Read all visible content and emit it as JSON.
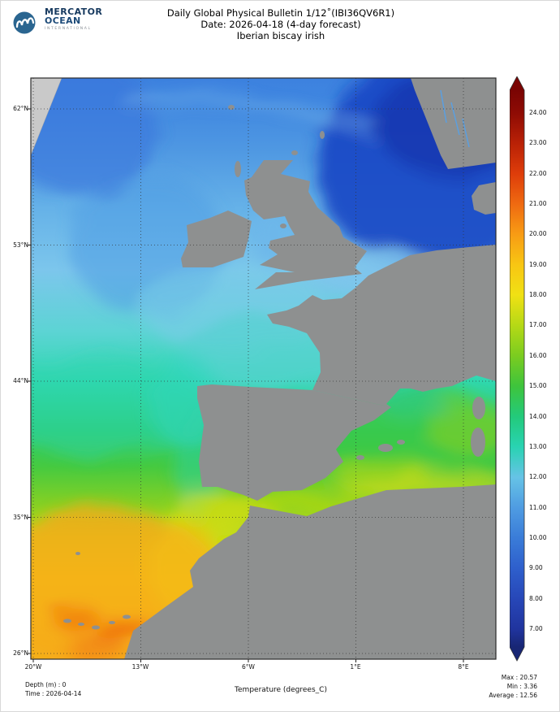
{
  "logo": {
    "line1": "MERCATOR",
    "line2": "OCEAN",
    "line3": "INTERNATIONAL",
    "circle_color": "#2a6590"
  },
  "title": {
    "line1": "Daily Global Physical Bulletin 1/12˚(IBI36QV6R1)",
    "line2": "Date: 2026-04-18 (4-day forecast)",
    "line3": "Iberian biscay irish"
  },
  "footer": {
    "depth": "Depth (m) : 0",
    "time": "Time : 2026-04-14",
    "variable": "Temperature (degrees_C)",
    "max": "Max : 20.57",
    "min": "Min : 3.36",
    "average": "Average : 12.56"
  },
  "chart_data": {
    "type": "heatmap",
    "title": "Daily Global Physical Bulletin 1/12˚(IBI36QV6R1)",
    "date": "2026-04-18",
    "forecast": "4-day forecast",
    "region": "Iberian biscay irish",
    "variable": "Temperature (degrees_C)",
    "depth_m": 0,
    "time": "2026-04-14",
    "x_ticks": [
      "20°W",
      "13°W",
      "6°W",
      "1°E",
      "8°E"
    ],
    "y_ticks": [
      "62°N",
      "53°N",
      "44°N",
      "35°N",
      "26°N"
    ],
    "lon_range": [
      -20,
      10
    ],
    "lat_range": [
      26,
      64
    ],
    "stats": {
      "max": 20.57,
      "min": 3.36,
      "average": 12.56
    },
    "land_color": "#8e9090",
    "out_of_domain_color": "#c9c9c9",
    "colorbar": {
      "min": 7,
      "max": 24,
      "tick_step": 1,
      "ticks": [
        "24.00",
        "23.00",
        "22.00",
        "21.00",
        "20.00",
        "19.00",
        "18.00",
        "17.00",
        "16.00",
        "15.00",
        "14.00",
        "13.00",
        "12.00",
        "11.00",
        "10.00",
        "9.00",
        "8.00",
        "7.00"
      ],
      "stops": [
        {
          "v": 24.75,
          "c": "#7a0403"
        },
        {
          "v": 24.0,
          "c": "#8e0b04"
        },
        {
          "v": 23.0,
          "c": "#b92106"
        },
        {
          "v": 22.0,
          "c": "#de3d0a"
        },
        {
          "v": 21.0,
          "c": "#ef6a11"
        },
        {
          "v": 20.0,
          "c": "#f89c14"
        },
        {
          "v": 19.0,
          "c": "#f8c613"
        },
        {
          "v": 18.0,
          "c": "#f0e114"
        },
        {
          "v": 17.0,
          "c": "#b5d916"
        },
        {
          "v": 16.0,
          "c": "#7bcc20"
        },
        {
          "v": 15.0,
          "c": "#3ec43c"
        },
        {
          "v": 14.0,
          "c": "#23ca7b"
        },
        {
          "v": 13.0,
          "c": "#29d3b2"
        },
        {
          "v": 12.0,
          "c": "#66c3e6"
        },
        {
          "v": 11.0,
          "c": "#4f9ce2"
        },
        {
          "v": 10.0,
          "c": "#3a7cd8"
        },
        {
          "v": 9.0,
          "c": "#2e5fcc"
        },
        {
          "v": 8.0,
          "c": "#2747b8"
        },
        {
          "v": 7.0,
          "c": "#20349e"
        },
        {
          "v": 6.41,
          "c": "#182674"
        }
      ]
    },
    "description": "Sea surface temperature field: 7-10C dark blue North Sea and northern waters, 11-14C light blue to teal Celtic Sea and Bay of Biscay, 15-17C green Iberian Atlantic and western Mediterranean, 18-21C yellow to orange subtropical Atlantic off Morocco and the Canary Islands."
  }
}
